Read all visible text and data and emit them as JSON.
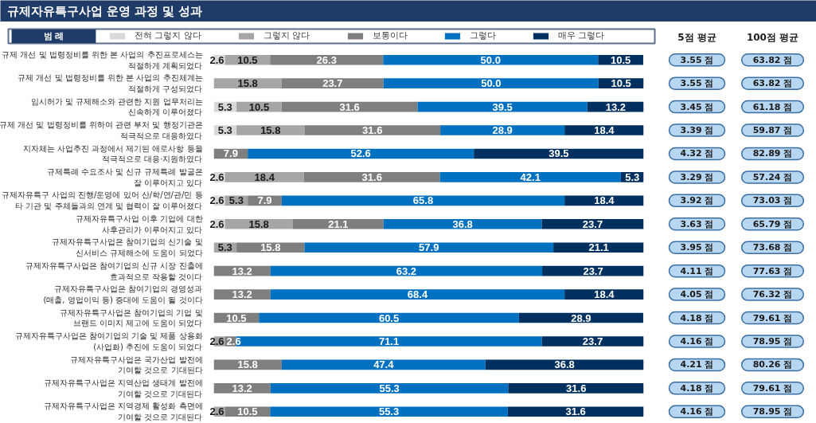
{
  "chart_data": [
    {
      "type": "bar",
      "orientation": "horizontal",
      "stacked": true,
      "title": "규제자유특구사업 운영 과정 및 성과",
      "legend_title": "범 례",
      "legend": "top",
      "tick_labels": "y",
      "xlim": [
        0,
        100
      ],
      "categories": [
        "규제 개선 및 법령정비를 위한 본 사업의 추진프로세스는\n적절하게 계획되었다",
        "규제 개선 및 법령정비를 위한 본 사업의 추진체계는\n적절하게 구성되었다",
        "임시허가 및 규제해소와 관련한 지원 업무처리는\n신속하게 이루어졌다",
        "규제 개선 및 법령정비를 위하여 관련 부처 및 행정기관은\n적극적으로 대응하였다",
        "지자체는 사업추진 과정에서 제기된 애로사항 등을\n적극적으로 대응·지원하였다",
        "규제특례 수요조사 및 신규 규제특례 발굴은\n잘 이루어지고 있다",
        "규제자유특구 사업의 진행/운영에 있어 산/학/연/관/민 등\n타 기관 및 주체들과의 연계 및 협력이 잘 이루어졌다",
        "규제자유특구사업 이후 기업에 대한\n사후관리가 이루어지고 있다",
        "규제자유특구사업은 참여기업의 신기술 및\n신서비스 규제해소에 도움이 되었다",
        "규제자유특구사업은 참여기업의 신규 시장 진출에\n효과적으로 작용할 것이다",
        "규제자유특구사업은 참여기업의 경영성과\n(매출, 영업이익 등) 증대에 도움이 될 것이다",
        "규제자유특구사업은 참여기업의 기업 및\n브랜드 이미지 제고에 도움이 되었다",
        "규제자유특구사업은 참여기업의 기술 및 제품 상용화\n(사업화) 추진에 도움이 되었다",
        "규제자유특구사업은 국가산업 발전에\n기여할 것으로 기대된다",
        "규제자유특구사업은 지역산업 생태계 발전에\n기여할 것으로 기대된다",
        "규제자유특구사업은 지역경제 활성화 측면에\n기여할 것으로 기대된다"
      ],
      "series": [
        {
          "name": "전혀 그렇지 않다",
          "color": "#d9d9d9",
          "values": [
            2.6,
            null,
            5.3,
            5.3,
            null,
            2.6,
            2.6,
            2.6,
            null,
            null,
            null,
            null,
            null,
            null,
            null,
            null
          ],
          "value_labels": [
            "2.6",
            null,
            "5.3",
            "5.3",
            null,
            "2.6",
            "2.6",
            "2.6",
            null,
            null,
            null,
            null,
            null,
            null,
            null,
            null
          ]
        },
        {
          "name": "그렇지 않다",
          "color": "#a6a6a6",
          "values": [
            10.5,
            15.8,
            10.5,
            15.8,
            null,
            18.4,
            5.3,
            15.8,
            5.3,
            null,
            null,
            null,
            2.6,
            null,
            null,
            2.6
          ],
          "value_labels": [
            "10.5",
            "15.8",
            "10.5",
            "15.8",
            null,
            "18.4",
            "5.3",
            "15.8",
            "5.3",
            null,
            null,
            null,
            "2.6",
            null,
            null,
            "2.6"
          ]
        },
        {
          "name": "보통이다",
          "color": "#7f7f7f",
          "values": [
            26.3,
            23.7,
            31.6,
            31.6,
            7.9,
            31.6,
            7.9,
            21.1,
            15.8,
            13.2,
            13.2,
            10.5,
            2.6,
            15.8,
            13.2,
            10.5
          ],
          "value_labels": [
            "26.3",
            "23.7",
            "31.6",
            "31.6",
            "7.9",
            "31.6",
            "7.9",
            "21.1",
            "15.8",
            "13.2",
            "13.2",
            "10.5",
            "2.6",
            "15.8",
            "13.2",
            "10.5"
          ]
        },
        {
          "name": "그렇다",
          "color": "#0070c0",
          "values": [
            50.0,
            50.0,
            39.5,
            28.9,
            52.6,
            42.1,
            65.8,
            36.8,
            57.9,
            63.2,
            68.4,
            60.5,
            71.1,
            47.4,
            55.3,
            55.3
          ],
          "value_labels": [
            "50.0",
            "50.0",
            "39.5",
            "28.9",
            "52.6",
            "42.1",
            "65.8",
            "36.8",
            "57.9",
            "63.2",
            "68.4",
            "60.5",
            "71.1",
            "47.4",
            "55.3",
            "55.3"
          ]
        },
        {
          "name": "매우 그렇다",
          "color": "#003060",
          "values": [
            10.5,
            10.5,
            13.2,
            18.4,
            39.5,
            5.3,
            18.4,
            23.7,
            21.1,
            23.7,
            18.4,
            28.9,
            23.7,
            36.8,
            31.6,
            31.6
          ],
          "value_labels": [
            "10.5",
            "10.5",
            "13.2",
            "18.4",
            "39.5",
            "5.3",
            "18.4",
            "23.7",
            "21.1",
            "23.7",
            "18.4",
            "28.9",
            "23.7",
            "36.8",
            "31.6",
            "31.6"
          ]
        }
      ]
    },
    {
      "type": "other",
      "categories": [
        "5점 평균",
        "100점 평균"
      ],
      "annotations": [
        "3.55 점",
        "63.82 점",
        "3.55 점",
        "63.82 점",
        "3.45 점",
        "61.18 점",
        "3.39 점",
        "59.87 점",
        "4.32 점",
        "82.89 점",
        "3.29 점",
        "57.24 점",
        "3.92 점",
        "73.03 점",
        "3.63 점",
        "65.79 점",
        "3.95 점",
        "73.68 점",
        "4.11 점",
        "77.63 점",
        "4.05 점",
        "76.32 점",
        "4.18 점",
        "79.61 점",
        "4.16 점",
        "78.95 점",
        "4.21 점",
        "80.26 점",
        "4.18 점",
        "79.61 점",
        "4.16 점",
        "78.95 점"
      ]
    }
  ]
}
